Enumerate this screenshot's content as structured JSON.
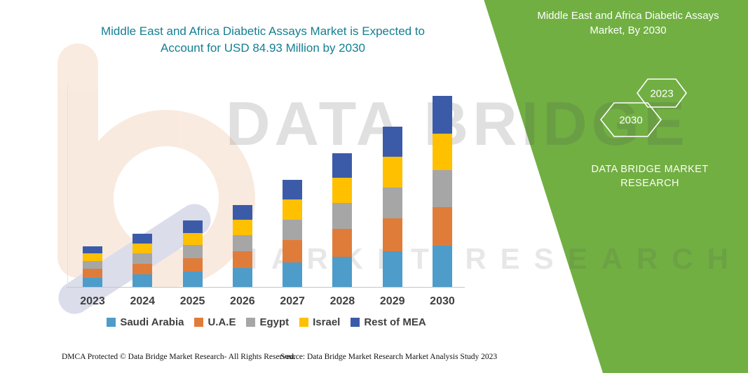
{
  "title": {
    "line1": "Middle East and Africa Diabetic Assays Market is Expected to",
    "line2": "Account for USD 84.93 Million by 2030"
  },
  "side_panel": {
    "title_line1": "Middle East and Africa Diabetic Assays",
    "title_line2": "Market, By 2030",
    "hexagons": [
      {
        "label": "2030"
      },
      {
        "label": "2023"
      }
    ],
    "brand_line1": "DATA BRIDGE MARKET",
    "brand_line2": "RESEARCH"
  },
  "watermark": {
    "line1": "DATA BRIDGE",
    "line2": "MARKET RESEARCH"
  },
  "footer": {
    "left": "DMCA Protected © Data Bridge Market Research-  All Rights Reserved.",
    "right": "Source: Data Bridge Market Research  Market Analysis Study 2023"
  },
  "colors": {
    "panel_green": "#71AF43",
    "title_teal": "#137F93"
  },
  "chart_data": {
    "type": "bar",
    "stacked": true,
    "title": "Middle East and Africa Diabetic Assays Market is Expected to Account for USD 84.93 Million by 2030",
    "value_unit": "USD Million",
    "xlabel": "",
    "ylabel": "",
    "ylim": [
      0,
      85
    ],
    "grid": false,
    "legend_position": "bottom",
    "categories": [
      "2023",
      "2024",
      "2025",
      "2026",
      "2027",
      "2028",
      "2029",
      "2030"
    ],
    "series": [
      {
        "name": "Saudi Arabia",
        "color": "#4E9CC9",
        "values": [
          4.2,
          5.5,
          6.8,
          8.5,
          11.0,
          13.5,
          16.0,
          18.5
        ]
      },
      {
        "name": "U.A.E",
        "color": "#E07C3A",
        "values": [
          3.8,
          4.9,
          6.1,
          7.5,
          9.8,
          12.2,
          14.5,
          17.0
        ]
      },
      {
        "name": "Egypt",
        "color": "#A6A6A6",
        "values": [
          3.5,
          4.6,
          5.7,
          7.0,
          9.2,
          11.5,
          13.8,
          16.5
        ]
      },
      {
        "name": "Israel",
        "color": "#FFC000",
        "values": [
          3.3,
          4.4,
          5.5,
          6.8,
          8.9,
          11.2,
          13.5,
          16.0
        ]
      },
      {
        "name": "Rest of MEA",
        "color": "#3B5BA9",
        "values": [
          3.2,
          4.3,
          5.4,
          6.7,
          8.8,
          11.1,
          13.4,
          16.93
        ]
      }
    ],
    "totals": [
      18.0,
      23.7,
      29.5,
      36.5,
      47.7,
      59.5,
      71.2,
      84.93
    ]
  }
}
